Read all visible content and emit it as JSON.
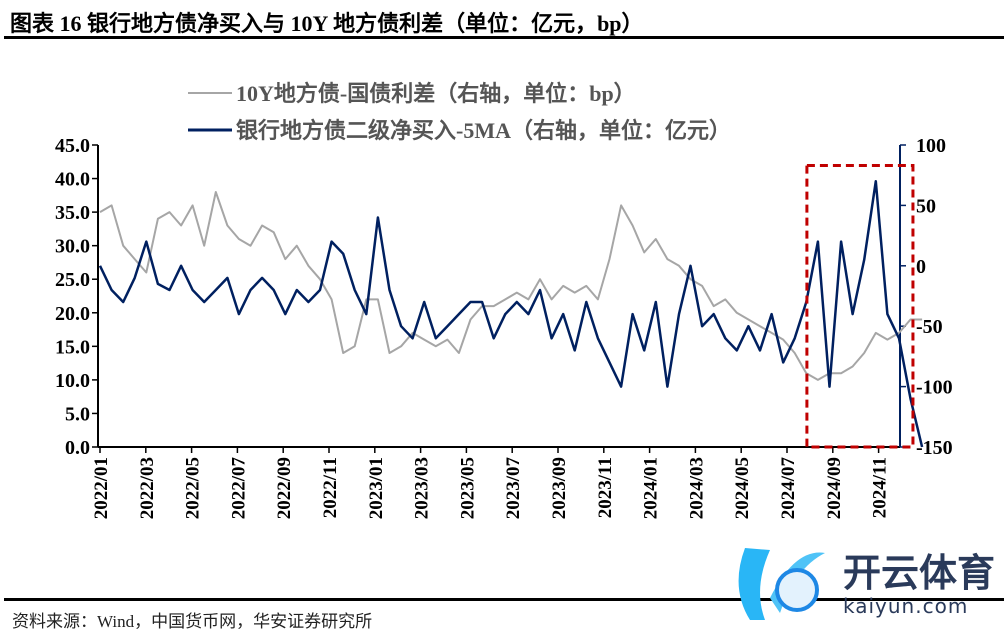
{
  "title": "图表 16 银行地方债净买入与 10Y 地方债利差（单位：亿元，bp）",
  "source": "资料来源：Wind，中国货币网，华安证券研究所",
  "logo": {
    "cn": "开云体育",
    "en": "kaiyun.com"
  },
  "chart_data": {
    "type": "line",
    "title": "",
    "legend": [
      "10Y地方债-国债利差（右轴，单位：bp）",
      "银行地方债二级净买入-5MA（右轴，单位：亿元）"
    ],
    "legend_placement": "top-center",
    "x_ticks": [
      "2022/01",
      "2022/03",
      "2022/05",
      "2022/07",
      "2022/09",
      "2022/11",
      "2023/01",
      "2023/03",
      "2023/05",
      "2023/07",
      "2023/09",
      "2023/11",
      "2024/01",
      "2024/03",
      "2024/05",
      "2024/07",
      "2024/09",
      "2024/11"
    ],
    "left_axis": {
      "range": [
        0,
        45
      ],
      "ticks": [
        "0.0",
        "5.0",
        "10.0",
        "15.0",
        "20.0",
        "25.0",
        "30.0",
        "35.0",
        "40.0",
        "45.0"
      ]
    },
    "right_axis": {
      "range": [
        -150,
        100
      ],
      "ticks": [
        "-150",
        "-100",
        "-50",
        "0",
        "50",
        "100"
      ]
    },
    "x_range": [
      "2022-01",
      "2024-12"
    ],
    "series": [
      {
        "name": "10Y地方债-国债利差（右轴，单位：bp）",
        "axis": "left",
        "color": "#a6a6a6",
        "values": [
          35,
          36,
          30,
          28,
          26,
          34,
          35,
          33,
          36,
          30,
          38,
          33,
          31,
          30,
          33,
          32,
          28,
          30,
          27,
          25,
          22,
          14,
          15,
          22,
          22,
          14,
          15,
          17,
          16,
          15,
          16,
          14,
          19,
          21,
          21,
          22,
          23,
          22,
          25,
          22,
          24,
          23,
          24,
          22,
          28,
          36,
          33,
          29,
          31,
          28,
          27,
          25,
          24,
          21,
          22,
          20,
          19,
          18,
          17,
          16,
          14,
          11,
          10,
          11,
          11,
          12,
          14,
          17,
          16,
          17,
          19,
          19
        ]
      },
      {
        "name": "银行地方债二级净买入-5MA（右轴，单位：亿元）",
        "axis": "right",
        "color": "#002060",
        "values": [
          0,
          -20,
          -30,
          -10,
          20,
          -15,
          -20,
          0,
          -20,
          -30,
          -20,
          -10,
          -40,
          -20,
          -10,
          -20,
          -40,
          -20,
          -30,
          -20,
          20,
          10,
          -20,
          -40,
          40,
          -20,
          -50,
          -60,
          -30,
          -60,
          -50,
          -40,
          -30,
          -30,
          -60,
          -40,
          -30,
          -40,
          -20,
          -60,
          -40,
          -70,
          -30,
          -60,
          -80,
          -100,
          -40,
          -70,
          -30,
          -100,
          -40,
          0,
          -50,
          -40,
          -60,
          -70,
          -50,
          -70,
          -40,
          -80,
          -60,
          -30,
          20,
          -100,
          20,
          -40,
          5,
          70,
          -40,
          -60,
          -110,
          -150
        ]
      }
    ],
    "highlight_box": {
      "x": [
        "2024-08",
        "2024-12"
      ],
      "right_axis_y": [
        -150,
        83
      ],
      "color": "#c00000",
      "style": "dashed"
    },
    "grid": false
  }
}
